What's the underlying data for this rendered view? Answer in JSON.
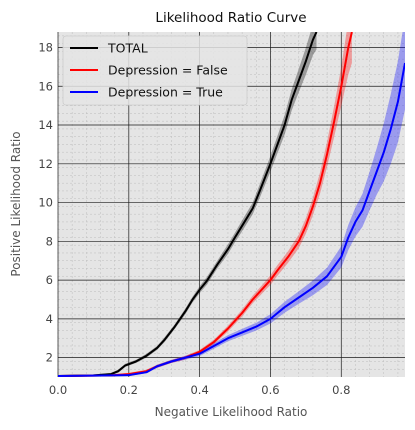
{
  "chart_data": {
    "type": "line",
    "title": "Likelihood Ratio Curve",
    "xlabel": "Negative Likelihood Ratio",
    "ylabel": "Positive Likelihood Ratio",
    "xlim": [
      0.0,
      0.98
    ],
    "ylim": [
      1.0,
      18.8
    ],
    "xticks": [
      0.0,
      0.2,
      0.4,
      0.6,
      0.8
    ],
    "xtick_labels": [
      "0.0",
      "0.2",
      "0.4",
      "0.6",
      "0.8"
    ],
    "yticks": [
      2,
      4,
      6,
      8,
      10,
      12,
      14,
      16,
      18
    ],
    "ytick_labels": [
      "2",
      "4",
      "6",
      "8",
      "10",
      "12",
      "14",
      "16",
      "18"
    ],
    "grid": true,
    "background": "#e5e5e5",
    "legend": {
      "placement": "top-left"
    },
    "series": [
      {
        "name": "TOTAL",
        "color": "#000000",
        "x": [
          0.0,
          0.1,
          0.15,
          0.17,
          0.19,
          0.22,
          0.25,
          0.28,
          0.3,
          0.33,
          0.36,
          0.38,
          0.4,
          0.42,
          0.45,
          0.48,
          0.5,
          0.52,
          0.55,
          0.57,
          0.6,
          0.62,
          0.64,
          0.66,
          0.68,
          0.7,
          0.72,
          0.73
        ],
        "y": [
          1.05,
          1.08,
          1.15,
          1.3,
          1.6,
          1.8,
          2.1,
          2.5,
          2.9,
          3.6,
          4.4,
          5.0,
          5.5,
          5.95,
          6.8,
          7.6,
          8.2,
          8.8,
          9.7,
          10.6,
          12.0,
          13.0,
          14.0,
          15.3,
          16.3,
          17.3,
          18.4,
          18.8
        ],
        "band": [
          0.05,
          0.05,
          0.06,
          0.08,
          0.08,
          0.08,
          0.1,
          0.1,
          0.12,
          0.12,
          0.15,
          0.15,
          0.18,
          0.2,
          0.2,
          0.25,
          0.25,
          0.28,
          0.3,
          0.35,
          0.4,
          0.45,
          0.5,
          0.55,
          0.6,
          0.7,
          0.8,
          0.9
        ]
      },
      {
        "name": "Depression = False",
        "color": "#ff0000",
        "x": [
          0.0,
          0.15,
          0.2,
          0.25,
          0.28,
          0.32,
          0.36,
          0.4,
          0.44,
          0.48,
          0.52,
          0.55,
          0.58,
          0.6,
          0.62,
          0.65,
          0.68,
          0.7,
          0.72,
          0.74,
          0.76,
          0.78,
          0.8,
          0.81,
          0.82,
          0.83
        ],
        "y": [
          1.05,
          1.08,
          1.15,
          1.3,
          1.55,
          1.8,
          2.0,
          2.3,
          2.8,
          3.5,
          4.3,
          5.0,
          5.6,
          6.0,
          6.5,
          7.2,
          8.0,
          8.8,
          9.8,
          11.0,
          12.5,
          14.2,
          16.0,
          17.0,
          18.0,
          18.8
        ],
        "band": [
          0.05,
          0.05,
          0.06,
          0.08,
          0.08,
          0.08,
          0.1,
          0.1,
          0.12,
          0.15,
          0.18,
          0.2,
          0.22,
          0.25,
          0.28,
          0.3,
          0.35,
          0.4,
          0.45,
          0.55,
          0.65,
          0.8,
          1.0,
          1.2,
          1.4,
          1.6
        ]
      },
      {
        "name": "Depression = True",
        "color": "#0000ff",
        "x": [
          0.0,
          0.15,
          0.2,
          0.25,
          0.28,
          0.32,
          0.36,
          0.4,
          0.44,
          0.48,
          0.52,
          0.56,
          0.6,
          0.64,
          0.68,
          0.72,
          0.76,
          0.8,
          0.82,
          0.84,
          0.86,
          0.88,
          0.9,
          0.92,
          0.94,
          0.96,
          0.98
        ],
        "y": [
          1.05,
          1.08,
          1.1,
          1.25,
          1.55,
          1.8,
          2.0,
          2.2,
          2.6,
          3.0,
          3.3,
          3.6,
          4.0,
          4.6,
          5.1,
          5.6,
          6.2,
          7.2,
          8.2,
          9.0,
          9.6,
          10.6,
          11.6,
          12.6,
          13.8,
          15.2,
          17.2
        ],
        "band": [
          0.05,
          0.05,
          0.05,
          0.06,
          0.08,
          0.08,
          0.1,
          0.12,
          0.14,
          0.16,
          0.18,
          0.2,
          0.24,
          0.28,
          0.32,
          0.38,
          0.45,
          0.55,
          0.65,
          0.75,
          0.85,
          1.0,
          1.2,
          1.5,
          1.8,
          2.1,
          2.4
        ]
      }
    ]
  }
}
